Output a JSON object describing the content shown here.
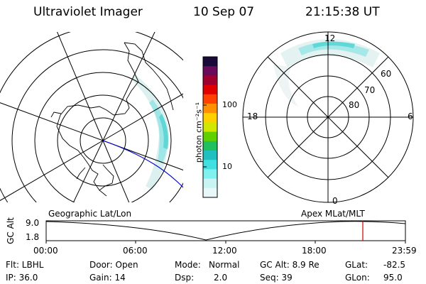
{
  "header": {
    "instrument": "Ultraviolet Imager",
    "date": "10 Sep 07",
    "time": "21:15:38 UT"
  },
  "colorbar": {
    "unit_label": "photon cm⁻²s⁻¹",
    "ticks": [
      "100",
      "10"
    ],
    "colors": [
      "#1a0a3a",
      "#6a0a5a",
      "#a00030",
      "#e00000",
      "#ff4000",
      "#ff9000",
      "#ffd000",
      "#d0e800",
      "#60d000",
      "#20c060",
      "#20c0c0",
      "#40e0e0",
      "#80f0f0",
      "#c8f4f4",
      "#e8f8f8"
    ]
  },
  "left_map": {
    "title": "Geographic Lat/Lon"
  },
  "right_map": {
    "title": "Apex MLat/MLT",
    "mlt_labels": {
      "top": "12",
      "left": "18",
      "right": "6",
      "bottom": "0"
    },
    "lat_labels": [
      "60",
      "70",
      "80"
    ]
  },
  "altitude_plot": {
    "ylabel": "GC Alt",
    "y_ticks": [
      "9.0",
      "1.8"
    ],
    "x_ticks": [
      "00:00",
      "06:00",
      "12:00",
      "18:00",
      "23:59"
    ],
    "marker_color": "#cc0000"
  },
  "info": {
    "row1": {
      "flt": "Flt: LBHL",
      "door": "Door: Open",
      "mode_label": "Mode:",
      "mode_value": "Normal",
      "gcalt": "GC Alt: 8.9 Re",
      "glat_label": "GLat:",
      "glat_value": "-82.5"
    },
    "row2": {
      "ip": "IP: 36.0",
      "gain": "Gain: 14",
      "dsp_label": "Dsp:",
      "dsp_value": "2.0",
      "seq": "Seq: 39",
      "glon_label": "GLon:",
      "glon_value": "95.0"
    }
  }
}
